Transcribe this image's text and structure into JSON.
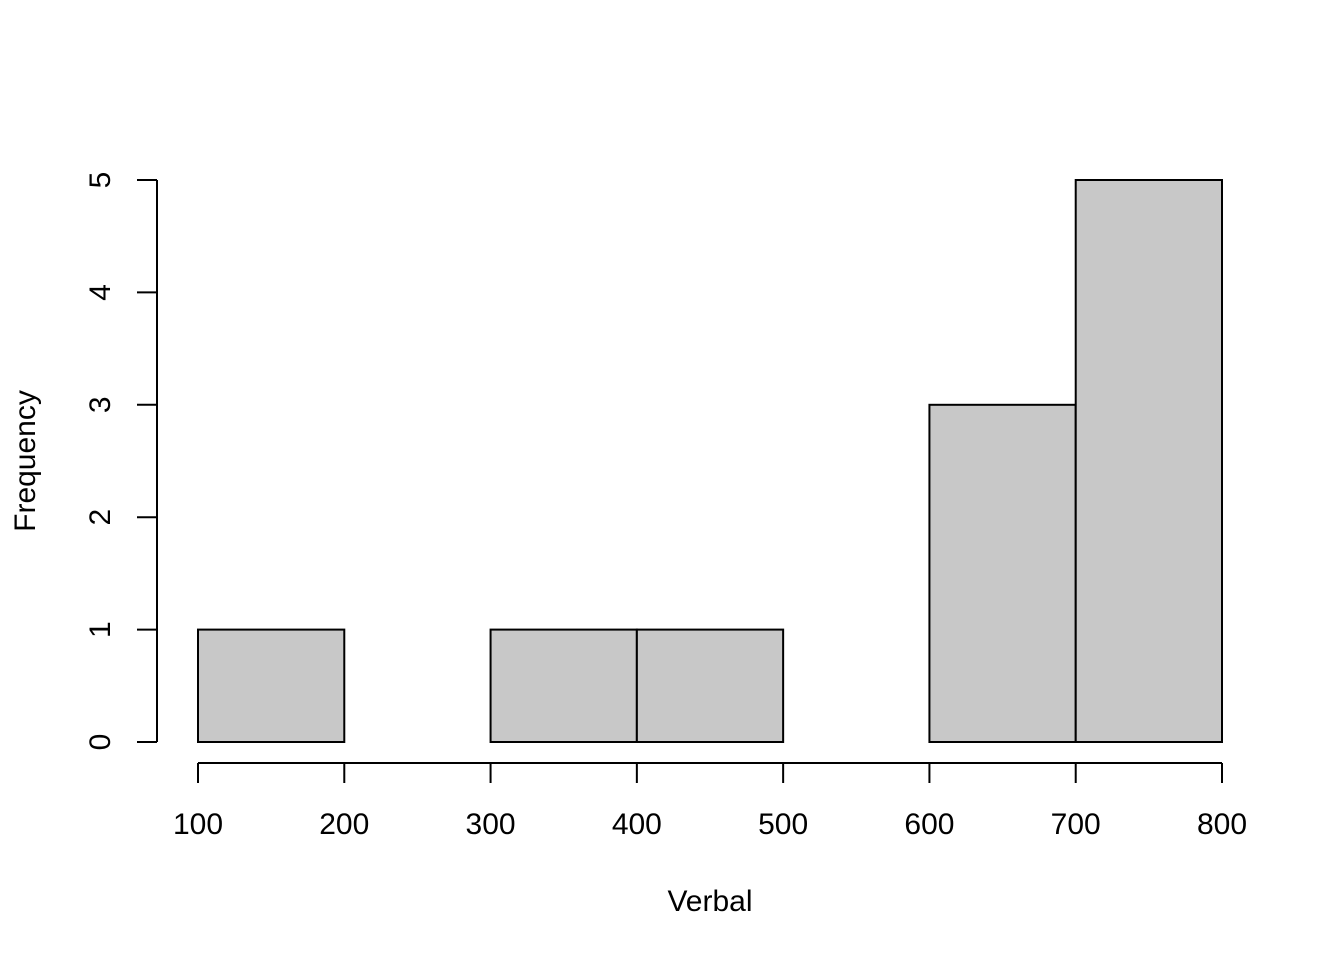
{
  "chart_data": {
    "type": "bar",
    "bins": [
      {
        "x0": 100,
        "x1": 200,
        "count": 1
      },
      {
        "x0": 200,
        "x1": 300,
        "count": 0
      },
      {
        "x0": 300,
        "x1": 400,
        "count": 1
      },
      {
        "x0": 400,
        "x1": 500,
        "count": 1
      },
      {
        "x0": 500,
        "x1": 600,
        "count": 0
      },
      {
        "x0": 600,
        "x1": 700,
        "count": 3
      },
      {
        "x0": 700,
        "x1": 800,
        "count": 5
      }
    ],
    "xlabel": "Verbal",
    "ylabel": "Frequency",
    "xlim": [
      100,
      800
    ],
    "ylim": [
      0,
      5
    ],
    "x_ticks": [
      100,
      200,
      300,
      400,
      500,
      600,
      700,
      800
    ],
    "y_ticks": [
      0,
      1,
      2,
      3,
      4,
      5
    ],
    "bar_color": "#c8c8c8",
    "edge_color": "#000000",
    "grid": false
  }
}
